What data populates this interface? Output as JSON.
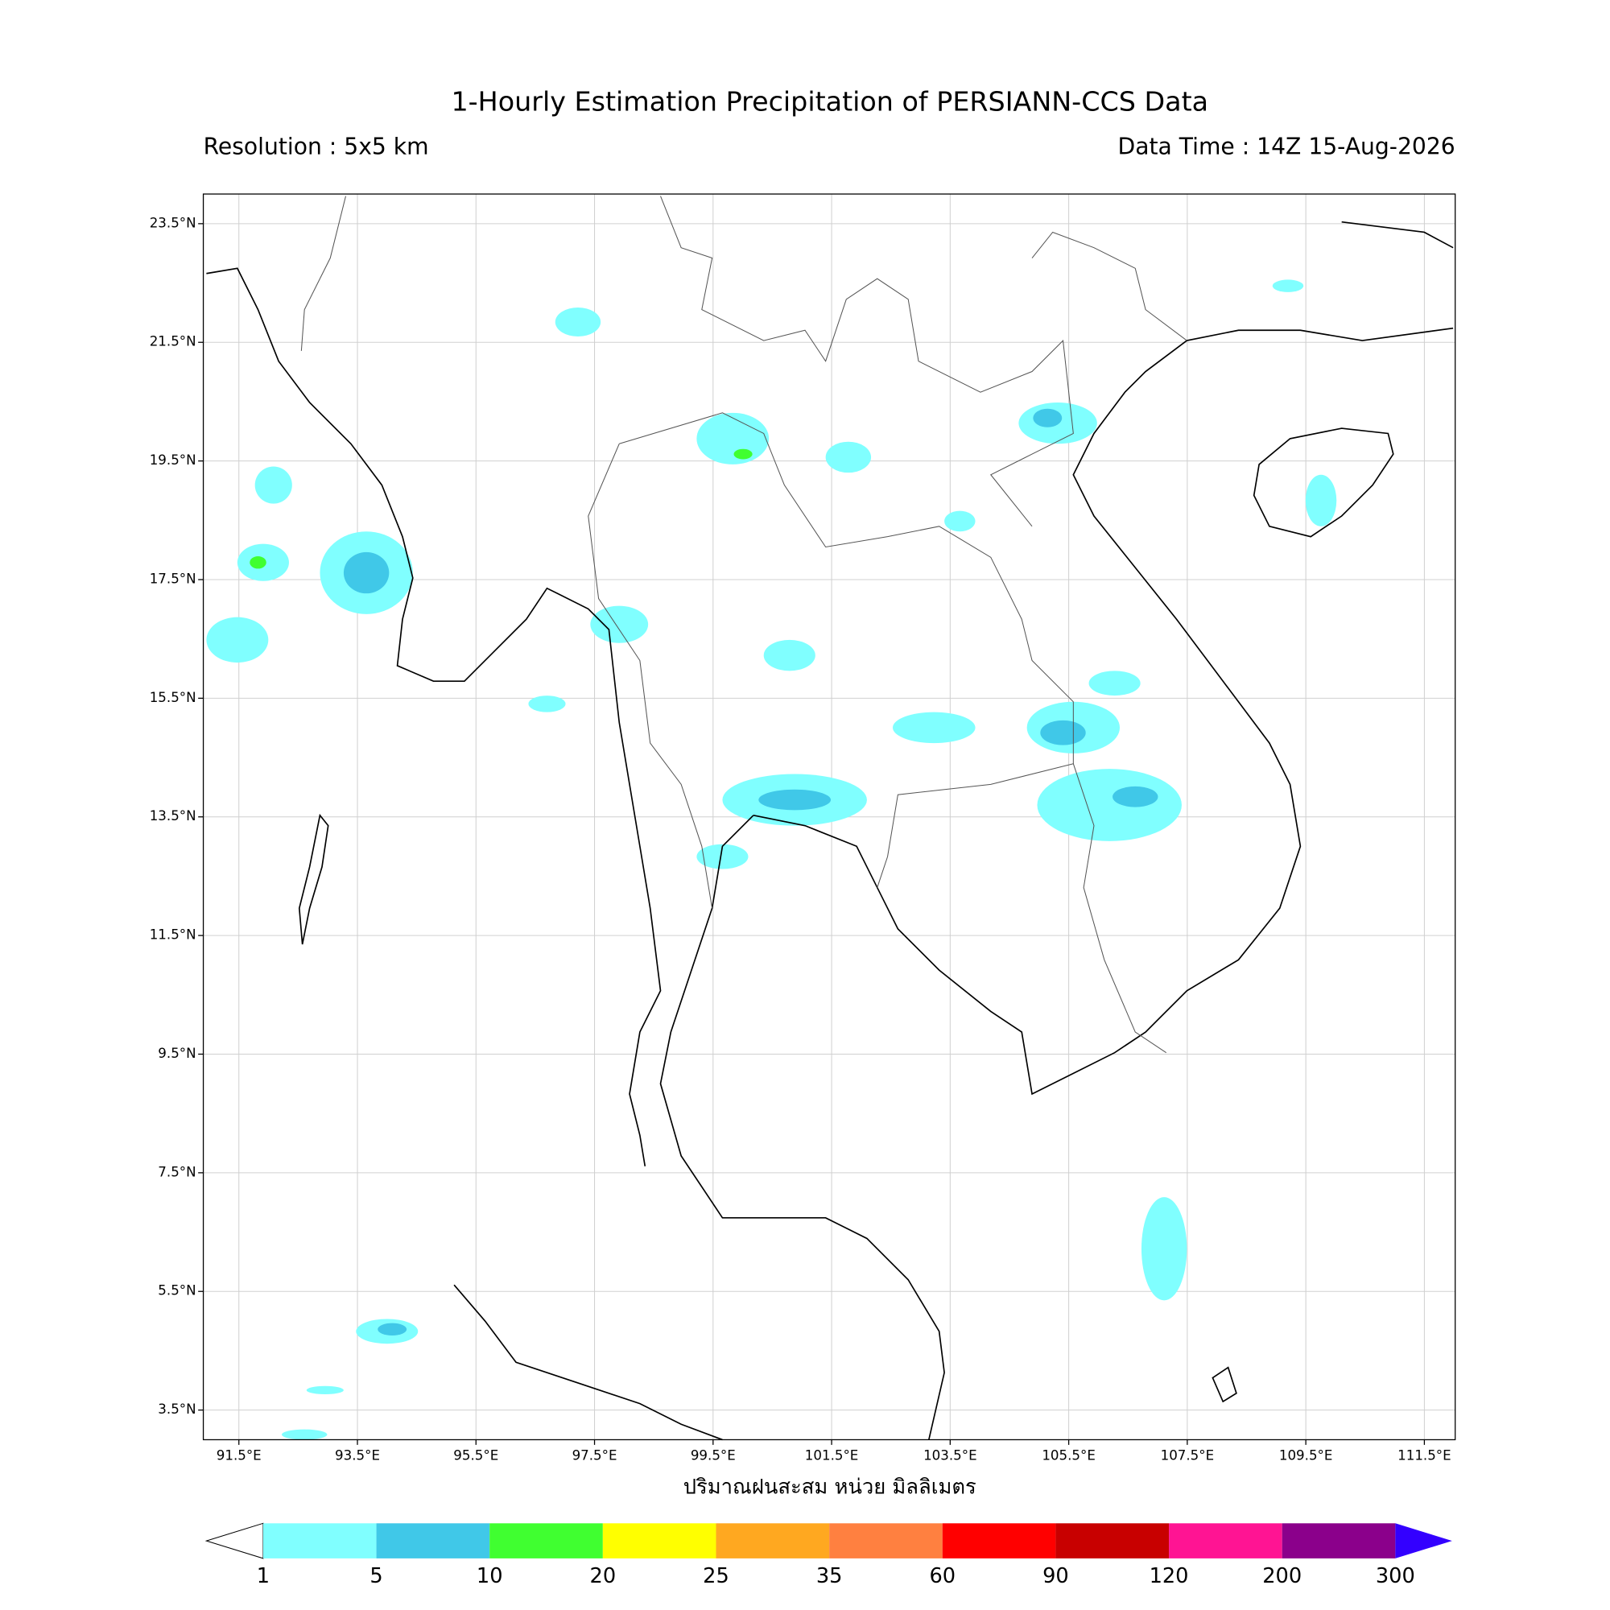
{
  "title": "1-Hourly Estimation Precipitation of PERSIANN-CCS Data",
  "resolution": "Resolution : 5x5 km",
  "data_time": "Data Time : 14Z 15-Aug-2026",
  "map": {
    "xlim": [
      90.9,
      112.02
    ],
    "ylim": [
      3.0,
      24.0
    ],
    "grid": true,
    "xticks": [
      {
        "value": 91.5,
        "label": "91.5°E"
      },
      {
        "value": 93.5,
        "label": "93.5°E"
      },
      {
        "value": 95.5,
        "label": "95.5°E"
      },
      {
        "value": 97.5,
        "label": "97.5°E"
      },
      {
        "value": 99.5,
        "label": "99.5°E"
      },
      {
        "value": 101.5,
        "label": "101.5°E"
      },
      {
        "value": 103.5,
        "label": "103.5°E"
      },
      {
        "value": 105.5,
        "label": "105.5°E"
      },
      {
        "value": 107.5,
        "label": "107.5°E"
      },
      {
        "value": 109.5,
        "label": "109.5°E"
      },
      {
        "value": 111.5,
        "label": "111.5°E"
      }
    ],
    "yticks": [
      {
        "value": 3.5,
        "label": "3.5°N"
      },
      {
        "value": 5.5,
        "label": "5.5°N"
      },
      {
        "value": 7.5,
        "label": "7.5°N"
      },
      {
        "value": 9.5,
        "label": "9.5°N"
      },
      {
        "value": 11.5,
        "label": "11.5°N"
      },
      {
        "value": 13.5,
        "label": "13.5°N"
      },
      {
        "value": 15.5,
        "label": "15.5°N"
      },
      {
        "value": 17.5,
        "label": "17.5°N"
      },
      {
        "value": 19.5,
        "label": "19.5°N"
      },
      {
        "value": 21.5,
        "label": "21.5°N"
      },
      {
        "value": 23.5,
        "label": "23.5°N"
      }
    ]
  },
  "colorbar": {
    "label": "ปริมาณฝนสะสม หน่วย มิลลิเมตร",
    "levels": [
      1,
      5,
      10,
      20,
      25,
      35,
      60,
      90,
      120,
      200,
      300
    ],
    "colors": [
      "#80ffff",
      "#40c8e8",
      "#40ff30",
      "#ffff00",
      "#ffa820",
      "#ff8040",
      "#ff0000",
      "#c80000",
      "#ff1493",
      "#8b008b"
    ],
    "under_color": "#ffffff",
    "over_color": "#3300ff"
  }
}
